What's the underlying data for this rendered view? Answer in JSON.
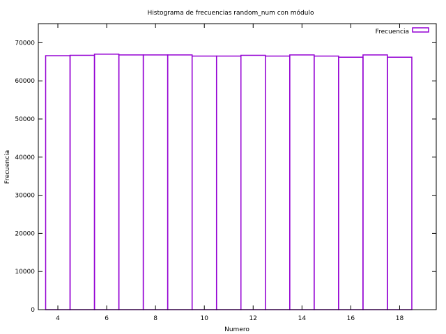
{
  "chart_data": {
    "type": "bar",
    "title": "Histograma de frecuencias random_num con módulo",
    "xlabel": "Numero",
    "ylabel": "Frecuencia",
    "legend": {
      "label": "Frecuencia",
      "placement": "top-right"
    },
    "grid": false,
    "xlim": [
      3.2,
      19.5
    ],
    "ylim": [
      0,
      75000
    ],
    "xticks": [
      4,
      6,
      8,
      10,
      12,
      14,
      16,
      18
    ],
    "yticks": [
      0,
      10000,
      20000,
      30000,
      40000,
      50000,
      60000,
      70000
    ],
    "categories": [
      4,
      5,
      6,
      7,
      8,
      9,
      10,
      11,
      12,
      13,
      14,
      15,
      16,
      17,
      18
    ],
    "series": [
      {
        "name": "Frecuencia",
        "values": [
          66600,
          66700,
          67000,
          66800,
          66800,
          66800,
          66500,
          66500,
          66700,
          66500,
          66800,
          66500,
          66200,
          66800,
          66200
        ]
      }
    ],
    "bar_color": "#9400d3"
  }
}
